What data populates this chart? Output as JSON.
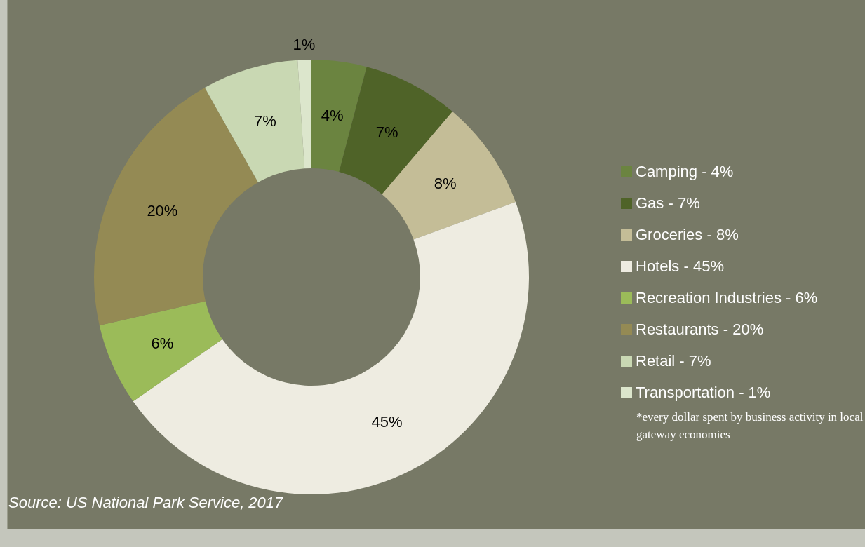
{
  "chart_data": {
    "type": "donut",
    "categories": [
      "Camping - 4%",
      "Gas - 7%",
      "Groceries - 8%",
      "Hotels - 45%",
      "Recreation Industries - 6%",
      "Restaurants - 20%",
      "Retail - 7%",
      "Transportation - 1%"
    ],
    "values": [
      4,
      7,
      8,
      45,
      6,
      20,
      7,
      1
    ],
    "value_labels": [
      "4%",
      "7%",
      "8%",
      "45%",
      "6%",
      "20%",
      "7%",
      "1%"
    ],
    "colors": [
      "#6b8440",
      "#4f6328",
      "#c4bd97",
      "#eeece1",
      "#9bbb59",
      "#948a54",
      "#c9d8b3",
      "#dce6cc"
    ],
    "legend": "right",
    "annotations": [
      "*every dollar spent by business activity in local gateway economies",
      "Source: US National Park Service, 2017"
    ]
  }
}
